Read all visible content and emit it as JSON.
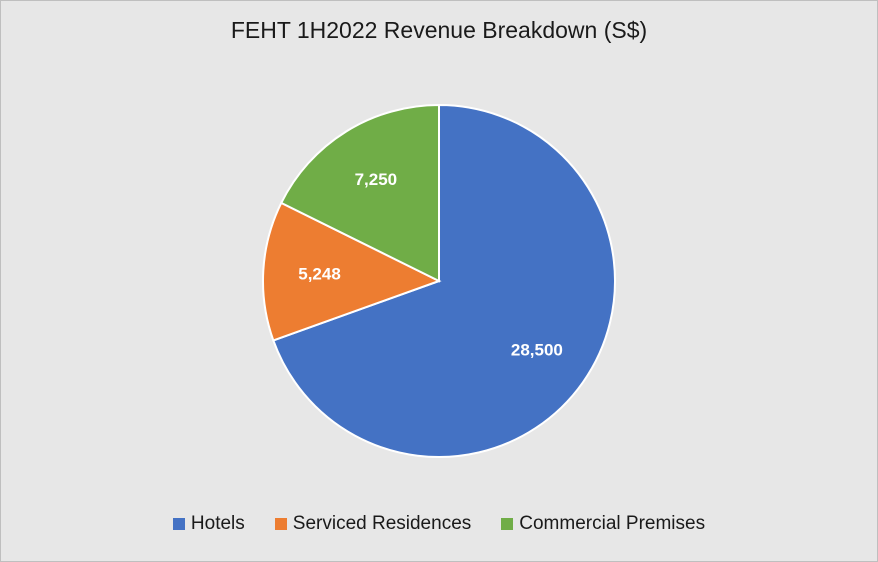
{
  "chart_data": {
    "type": "pie",
    "title": "FEHT 1H2022 Revenue Breakdown (S$)",
    "categories": [
      "Hotels",
      "Serviced Residences",
      "Commercial Premises"
    ],
    "values": [
      28500,
      5248,
      7250
    ],
    "labels": [
      "28,500",
      "5,248",
      "7,250"
    ],
    "colors": [
      "#4472c4",
      "#ed7d31",
      "#70ad47"
    ],
    "legend_position": "bottom",
    "start_angle": "12 o'clock",
    "direction": "clockwise"
  }
}
